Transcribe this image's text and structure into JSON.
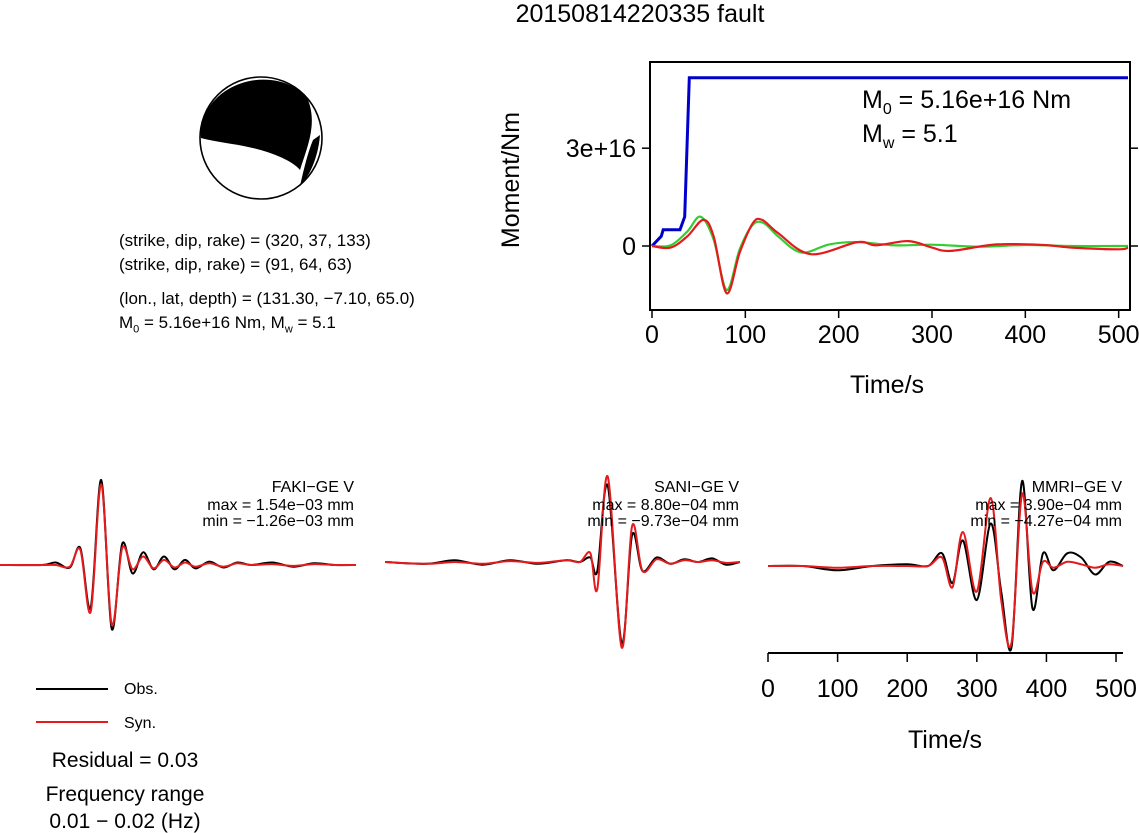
{
  "title": "20150814220335 fault",
  "mechanism": {
    "plane1": "(strike, dip, rake) = (320, 37, 133)",
    "plane2": "(strike, dip, rake) = (91, 64, 63)",
    "location": "(lon., lat, depth) = (131.30, −7.10, 65.0)",
    "moment_text": "M0 = 5.16e+16 Nm, Mw = 5.1",
    "strike": 320,
    "dip": 37,
    "rake": 133
  },
  "moment_panel": {
    "ylabel": "Moment/Nm",
    "xlabel": "Time/s",
    "m0_label": "5.16e+16 Nm",
    "mw_label": "5.1",
    "yticks": [
      "0",
      "3e+16"
    ],
    "xticks": [
      "0",
      "100",
      "200",
      "300",
      "400",
      "500"
    ]
  },
  "stations": [
    {
      "name": "FAKI−GE V",
      "max": "max = 1.54e−03 mm",
      "min": "min = −1.26e−03 mm"
    },
    {
      "name": "SANI−GE V",
      "max": "max = 8.80e−04 mm",
      "min": "min = −9.73e−04 mm"
    },
    {
      "name": "MMRI−GE V",
      "max": "max = 3.90e−04 mm",
      "min": "min = −4.27e−04 mm"
    }
  ],
  "wave_axis": {
    "xlabel": "Time/s",
    "xticks": [
      "0",
      "100",
      "200",
      "300",
      "400",
      "500"
    ]
  },
  "legend": {
    "obs": "Obs.",
    "syn": "Syn."
  },
  "residual": "Residual = 0.03",
  "freq_label": "Frequency range",
  "freq_range": "0.01 − 0.02 (Hz)",
  "colors": {
    "obs": "#000000",
    "syn": "#e41a1c",
    "moment": "#0000cc",
    "green": "#33cc33"
  },
  "chart_data": [
    {
      "type": "line",
      "title": "",
      "xlabel": "Time/s",
      "ylabel": "Moment/Nm",
      "xlim": [
        0,
        510
      ],
      "ylim": [
        -1.6e+16,
        5.5e+16
      ],
      "series": [
        {
          "name": "",
          "color": "#0000cc",
          "x": [
            0,
            10,
            12,
            30,
            35,
            40,
            510
          ],
          "y": [
            0,
            3000000000000000.0,
            5000000000000000.0,
            5000000000000000.0,
            9000000000000000.0,
            5.16e+16,
            5.16e+16
          ]
        },
        {
          "name": "",
          "color": "#33cc33",
          "x": [
            0,
            20,
            38,
            52,
            66,
            80,
            94,
            108,
            120,
            135,
            160,
            190,
            220,
            260,
            300,
            350,
            400,
            450,
            510
          ],
          "y": [
            0,
            200000000000000.0,
            4500000000000000.0,
            9000000000000000.0,
            2000000000000000.0,
            -1.35e+16,
            -1000000000000000.0,
            6500000000000000.0,
            7000000000000000.0,
            3000000000000000.0,
            -2000000000000000.0,
            500000000000000.0,
            1200000000000000.0,
            200000000000000.0,
            400000000000000.0,
            -200000000000000.0,
            300000000000000.0,
            0.0,
            0.0
          ]
        },
        {
          "name": "",
          "color": "#e41a1c",
          "x": [
            0,
            20,
            38,
            55,
            66,
            80,
            94,
            108,
            118,
            135,
            170,
            220,
            240,
            275,
            300,
            320,
            370,
            420,
            450,
            500,
            510
          ],
          "y": [
            0,
            -500000000000000.0,
            3000000000000000.0,
            8000000000000000.0,
            3000000000000000.0,
            -1.45e+16,
            -2000000000000000.0,
            7000000000000000.0,
            8000000000000000.0,
            4000000000000000.0,
            -2500000000000000.0,
            1200000000000000.0,
            200000000000000.0,
            1500000000000000.0,
            -500000000000000.0,
            -1500000000000000.0,
            500000000000000.0,
            300000000000000.0,
            -500000000000000.0,
            -1000000000000000.0,
            -500000000000000.0
          ]
        }
      ]
    },
    {
      "type": "line",
      "title": "FAKI−GE V",
      "xlim": [
        0,
        510
      ],
      "ylim": [
        -1,
        1
      ],
      "series": [
        {
          "name": "Obs.",
          "color": "#000000",
          "x": [
            0,
            60,
            80,
            100,
            115,
            130,
            145,
            160,
            175,
            190,
            205,
            220,
            235,
            250,
            265,
            280,
            300,
            320,
            340,
            360,
            390,
            420,
            450,
            480,
            510
          ],
          "y": [
            0,
            0.0,
            0.03,
            -0.03,
            0.2,
            -0.5,
            1.0,
            -0.75,
            0.25,
            -0.1,
            0.15,
            -0.05,
            0.1,
            -0.05,
            0.06,
            -0.04,
            0.04,
            -0.03,
            0.03,
            0.0,
            0.03,
            -0.02,
            0.02,
            0.0,
            0.0
          ]
        },
        {
          "name": "Syn.",
          "color": "#e41a1c",
          "x": [
            0,
            60,
            80,
            100,
            115,
            130,
            145,
            160,
            175,
            190,
            205,
            220,
            235,
            250,
            265,
            280,
            300,
            320,
            340,
            360,
            390,
            420,
            450,
            480,
            510
          ],
          "y": [
            0,
            0.0,
            0.0,
            -0.02,
            0.18,
            -0.55,
            0.95,
            -0.7,
            0.2,
            -0.05,
            0.1,
            -0.04,
            0.06,
            -0.03,
            0.03,
            -0.02,
            0.02,
            -0.02,
            0.02,
            0.0,
            0.01,
            -0.01,
            0.01,
            0.0,
            0.0
          ]
        }
      ]
    },
    {
      "type": "line",
      "title": "SANI−GE V",
      "xlim": [
        0,
        510
      ],
      "ylim": [
        -1,
        1
      ],
      "series": [
        {
          "name": "Obs.",
          "color": "#000000",
          "x": [
            0,
            60,
            100,
            140,
            180,
            220,
            260,
            280,
            295,
            305,
            320,
            340,
            355,
            370,
            390,
            410,
            430,
            450,
            470,
            490,
            510
          ],
          "y": [
            0,
            -0.02,
            0.02,
            -0.03,
            0.02,
            -0.02,
            0.02,
            0.0,
            0.05,
            -0.1,
            0.85,
            -0.9,
            0.3,
            -0.1,
            0.05,
            -0.02,
            0.03,
            0.0,
            0.04,
            -0.03,
            0.0
          ]
        },
        {
          "name": "Syn.",
          "color": "#e41a1c",
          "x": [
            0,
            60,
            100,
            140,
            180,
            220,
            260,
            280,
            295,
            305,
            320,
            340,
            355,
            370,
            390,
            410,
            430,
            450,
            470,
            490,
            510
          ],
          "y": [
            0,
            -0.02,
            0.0,
            -0.02,
            0.01,
            -0.01,
            0.02,
            0.0,
            0.1,
            -0.3,
            0.95,
            -0.95,
            0.4,
            -0.1,
            0.03,
            -0.02,
            0.02,
            0.0,
            0.02,
            -0.01,
            0.0
          ]
        }
      ]
    },
    {
      "type": "line",
      "title": "MMRI−GE V",
      "xlim": [
        0,
        510
      ],
      "ylim": [
        -1,
        1
      ],
      "series": [
        {
          "name": "Obs.",
          "color": "#000000",
          "x": [
            0,
            50,
            100,
            150,
            200,
            230,
            250,
            265,
            280,
            300,
            320,
            335,
            350,
            365,
            380,
            395,
            410,
            430,
            450,
            470,
            490,
            510
          ],
          "y": [
            0,
            0.0,
            -0.05,
            0.0,
            0.02,
            0.0,
            0.15,
            -0.2,
            0.3,
            -0.4,
            0.5,
            -0.3,
            -0.95,
            1.0,
            -0.5,
            0.15,
            -0.05,
            0.15,
            0.1,
            -0.1,
            0.05,
            0.0
          ]
        },
        {
          "name": "Syn.",
          "color": "#e41a1c",
          "x": [
            0,
            50,
            100,
            150,
            200,
            230,
            250,
            265,
            280,
            300,
            320,
            335,
            350,
            365,
            380,
            395,
            410,
            430,
            450,
            470,
            490,
            510
          ],
          "y": [
            0,
            0.0,
            -0.02,
            0.0,
            0.0,
            0.0,
            0.1,
            -0.25,
            0.4,
            -0.3,
            0.8,
            -0.4,
            -0.9,
            0.85,
            -0.3,
            0.05,
            -0.02,
            0.05,
            0.02,
            -0.02,
            0.02,
            0.0
          ]
        }
      ]
    }
  ]
}
